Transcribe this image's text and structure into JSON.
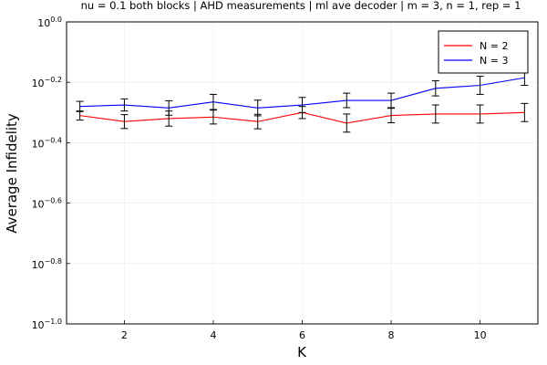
{
  "chart_data": {
    "type": "line",
    "title": "nu = 0.1 both blocks | AHD measurements | ml ave decoder | m = 3, n = 1, rep = 1",
    "xlabel": "K",
    "ylabel": "Average Infidelity",
    "x": [
      1,
      2,
      3,
      4,
      5,
      6,
      7,
      8,
      9,
      10,
      11
    ],
    "xlim": [
      0.7,
      11.3
    ],
    "xticks": [
      2,
      4,
      6,
      8,
      10
    ],
    "yscale": "log10",
    "ylim_exponent": [
      -1.0,
      0.0
    ],
    "yticks": [
      {
        "exp": -1.0,
        "base": "10",
        "sup": "−1.0"
      },
      {
        "exp": -0.8,
        "base": "10",
        "sup": "−0.8"
      },
      {
        "exp": -0.6,
        "base": "10",
        "sup": "−0.6"
      },
      {
        "exp": -0.4,
        "base": "10",
        "sup": "−0.4"
      },
      {
        "exp": -0.2,
        "base": "10",
        "sup": "−0.2"
      },
      {
        "exp": 0.0,
        "base": "10",
        "sup": "0.0"
      }
    ],
    "grid": true,
    "legend_position": "top-right",
    "series": [
      {
        "name": "N = 2",
        "color": "#ff0000",
        "log10_values": [
          -0.31,
          -0.33,
          -0.32,
          -0.315,
          -0.33,
          -0.3,
          -0.335,
          -0.31,
          -0.305,
          -0.305,
          -0.3
        ],
        "log10_err": [
          0.015,
          0.023,
          0.025,
          0.023,
          0.024,
          0.02,
          0.03,
          0.024,
          0.03,
          0.03,
          0.03
        ]
      },
      {
        "name": "N = 3",
        "color": "#0000ff",
        "log10_values": [
          -0.28,
          -0.275,
          -0.285,
          -0.265,
          -0.285,
          -0.275,
          -0.26,
          -0.26,
          -0.22,
          -0.21,
          -0.185
        ],
        "log10_err": [
          0.017,
          0.02,
          0.024,
          0.025,
          0.026,
          0.025,
          0.024,
          0.024,
          0.025,
          0.03,
          0.025
        ]
      }
    ]
  }
}
